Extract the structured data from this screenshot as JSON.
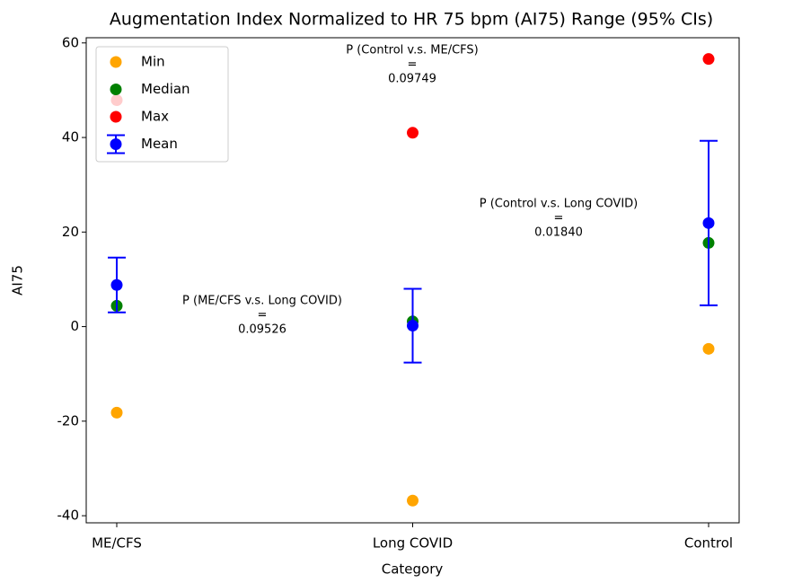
{
  "chart_data": {
    "type": "scatter",
    "title": "Augmentation Index Normalized to HR 75 bpm (AI75) Range (95% CIs)",
    "xlabel": "Category",
    "ylabel": "AI75",
    "categories": [
      "ME/CFS",
      "Long COVID",
      "Control"
    ],
    "series": [
      {
        "name": "Min",
        "color": "#ffa500",
        "values": [
          -18.2,
          -36.8,
          -4.7
        ]
      },
      {
        "name": "Median",
        "color": "#008000",
        "values": [
          4.4,
          1.1,
          17.7
        ]
      },
      {
        "name": "Max",
        "color": "#ff0000",
        "values": [
          47.9,
          41.0,
          56.6
        ]
      },
      {
        "name": "Mean",
        "color": "#0000ff",
        "values": [
          8.8,
          0.2,
          21.9
        ],
        "errors": [
          5.8,
          7.8,
          17.4
        ]
      }
    ],
    "ylim": [
      -41.5,
      61.1
    ],
    "yticks": [
      -40,
      -20,
      0,
      20,
      40,
      60
    ],
    "legend": "upper left",
    "annotations": [
      [
        "P (Control v.s. ME/CFS)",
        "=",
        "0.09749"
      ],
      [
        "P (Control v.s. Long COVID)",
        "=",
        "0.01840"
      ],
      [
        "P (ME/CFS v.s. Long COVID)",
        "=",
        "0.09526"
      ]
    ]
  }
}
